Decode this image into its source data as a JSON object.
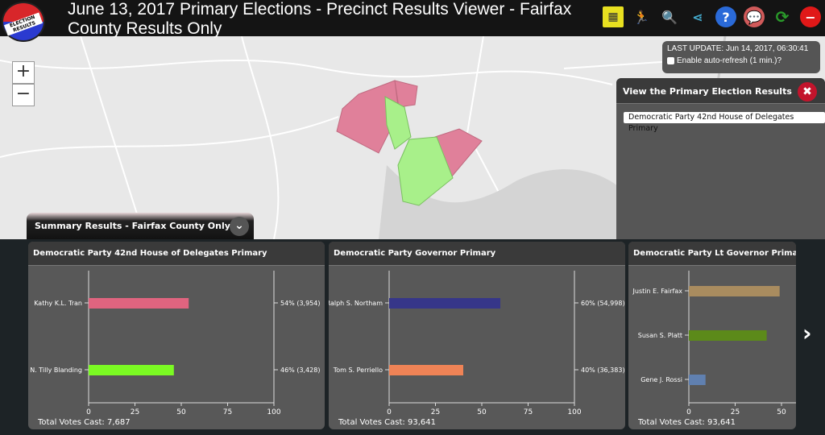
{
  "header": {
    "logo_text": "Election Results",
    "title": "June 13, 2017 Primary Elections - Precinct Results Viewer - Fairfax County Results Only",
    "icons": [
      "calendar-grid-icon",
      "runner-icon",
      "search-icon",
      "share-icon",
      "help-icon",
      "comments-icon",
      "refresh-icon",
      "close-icon"
    ]
  },
  "map": {
    "zoom_in": "+",
    "zoom_out": "−",
    "colors": {
      "tran": "#e0809a",
      "blanding": "#a8f08a"
    }
  },
  "update": {
    "label": "LAST UPDATE: Jun 14, 2017, 06:30:41",
    "auto_refresh": "Enable auto-refresh (1 min.)?",
    "auto_refresh_checked": false
  },
  "viewer": {
    "title": "View the Primary Election Results",
    "selected": "Democratic Party 42nd House of Delegates Primary"
  },
  "summary": {
    "title": "Summary Results - Fairfax County Only"
  },
  "chart_data": [
    {
      "type": "bar",
      "title": "Democratic Party 42nd House of Delegates Primary",
      "categories": [
        "Kathy K.L. Tran",
        "N. Tilly Blanding"
      ],
      "values": [
        54,
        46
      ],
      "labels": [
        "54% (3,954)",
        "46% (3,428)"
      ],
      "colors": [
        "#e0647f",
        "#7bfa23"
      ],
      "xlim": [
        0,
        100
      ],
      "xticks": [
        "0",
        "25",
        "50",
        "75",
        "100"
      ],
      "total": "Total Votes Cast: 7,687"
    },
    {
      "type": "bar",
      "title": "Democratic Party Governor Primary",
      "categories": [
        "Ralph S. Northam",
        "Tom S. Perriello"
      ],
      "values": [
        60,
        40
      ],
      "labels": [
        "60% (54,998)",
        "40% (36,383)"
      ],
      "colors": [
        "#363689",
        "#ef8356"
      ],
      "xlim": [
        0,
        100
      ],
      "xticks": [
        "0",
        "25",
        "50",
        "75",
        "100"
      ],
      "total": "Total Votes Cast: 93,641"
    },
    {
      "type": "bar",
      "title": "Democratic Party Lt Governor Primary",
      "categories": [
        "Justin E. Fairfax",
        "Susan S. Platt",
        "Gene J. Rossi"
      ],
      "values": [
        49,
        42,
        9
      ],
      "labels": [
        "",
        "",
        ""
      ],
      "colors": [
        "#a98c5f",
        "#5c8a1a",
        "#6080b0"
      ],
      "xlim": [
        0,
        100
      ],
      "xticks": [
        "0",
        "25",
        "50",
        "75",
        "100"
      ],
      "total": "Total Votes Cast: 93,641"
    }
  ],
  "nav": {
    "next": "›"
  }
}
